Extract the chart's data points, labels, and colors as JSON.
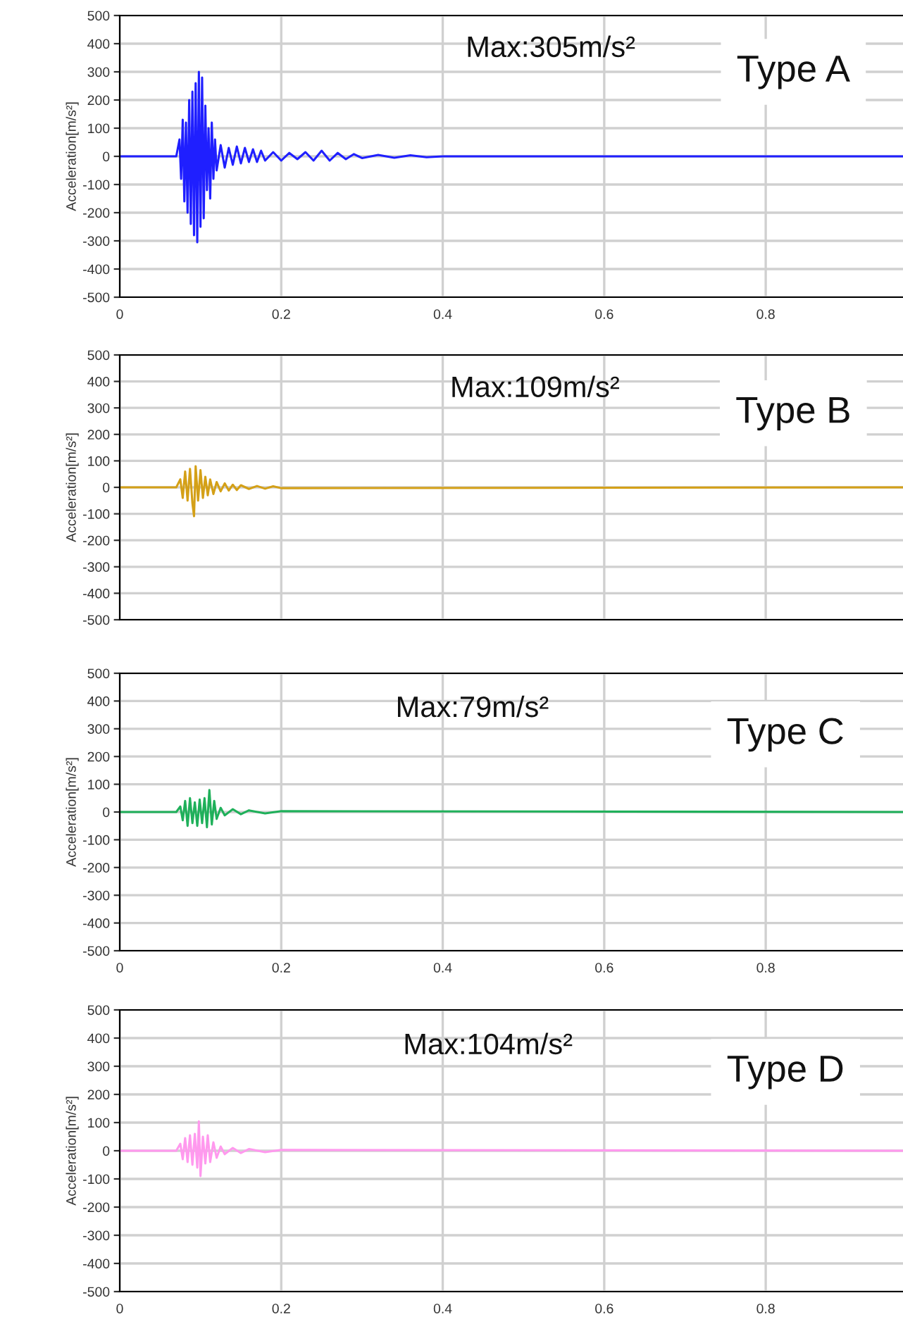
{
  "chart_data": [
    {
      "type": "line",
      "ylabel": "Acceleration[m/s²]",
      "annotations": [
        "Max:305m/s²",
        "Type A"
      ],
      "xlim": [
        0,
        0.97
      ],
      "ylim": [
        -500,
        500
      ],
      "xticks": [
        0,
        0.2,
        0.4,
        0.6,
        0.8
      ],
      "yticks": [
        -500,
        -400,
        -300,
        -200,
        -100,
        0,
        100,
        200,
        300,
        400,
        500
      ],
      "grid": true,
      "legend": false,
      "series": [
        {
          "color": "#1f1fff",
          "x": [
            0,
            0.07,
            0.074,
            0.076,
            0.078,
            0.08,
            0.082,
            0.084,
            0.086,
            0.088,
            0.09,
            0.092,
            0.094,
            0.096,
            0.098,
            0.1,
            0.102,
            0.104,
            0.106,
            0.108,
            0.11,
            0.112,
            0.114,
            0.116,
            0.118,
            0.12,
            0.125,
            0.13,
            0.135,
            0.14,
            0.145,
            0.15,
            0.155,
            0.16,
            0.165,
            0.17,
            0.175,
            0.18,
            0.19,
            0.2,
            0.21,
            0.22,
            0.23,
            0.24,
            0.25,
            0.26,
            0.27,
            0.28,
            0.29,
            0.3,
            0.32,
            0.34,
            0.36,
            0.38,
            0.4,
            0.97
          ],
          "values": [
            0,
            0,
            60,
            -80,
            130,
            -160,
            120,
            -200,
            200,
            -240,
            230,
            -280,
            260,
            -305,
            300,
            -250,
            280,
            -220,
            180,
            -120,
            100,
            -150,
            120,
            -80,
            60,
            -50,
            40,
            -40,
            30,
            -30,
            35,
            -25,
            30,
            -20,
            25,
            -20,
            20,
            -15,
            15,
            -15,
            12,
            -10,
            15,
            -15,
            20,
            -15,
            12,
            -10,
            8,
            -6,
            5,
            -5,
            4,
            -3,
            0,
            0
          ]
        }
      ]
    },
    {
      "type": "line",
      "ylabel": "Acceleration[m/s²]",
      "annotations": [
        "Max:109m/s²",
        "Type B"
      ],
      "xlim": [
        0,
        0.97
      ],
      "ylim": [
        -500,
        500
      ],
      "xticks": [
        0,
        0.2,
        0.4,
        0.6,
        0.8
      ],
      "yticks": [
        -500,
        -400,
        -300,
        -200,
        -100,
        0,
        100,
        200,
        300,
        400,
        500
      ],
      "grid": true,
      "legend": false,
      "tick_labels": "y",
      "series": [
        {
          "color": "#d4a017",
          "x": [
            0,
            0.07,
            0.075,
            0.078,
            0.081,
            0.084,
            0.087,
            0.09,
            0.092,
            0.094,
            0.097,
            0.1,
            0.103,
            0.106,
            0.109,
            0.112,
            0.116,
            0.12,
            0.125,
            0.13,
            0.135,
            0.14,
            0.145,
            0.15,
            0.16,
            0.17,
            0.18,
            0.19,
            0.2,
            0.97
          ],
          "values": [
            0,
            0,
            30,
            -40,
            60,
            -50,
            70,
            -60,
            -109,
            80,
            -50,
            65,
            -40,
            40,
            -30,
            30,
            -25,
            20,
            -15,
            15,
            -12,
            10,
            -10,
            8,
            -6,
            5,
            -5,
            4,
            -3,
            0
          ]
        }
      ]
    },
    {
      "type": "line",
      "ylabel": "Acceleration[m/s²]",
      "annotations": [
        "Max:79m/s²",
        "Type C"
      ],
      "xlim": [
        0,
        0.97
      ],
      "ylim": [
        -500,
        500
      ],
      "xticks": [
        0,
        0.2,
        0.4,
        0.6,
        0.8
      ],
      "yticks": [
        -500,
        -400,
        -300,
        -200,
        -100,
        0,
        100,
        200,
        300,
        400,
        500
      ],
      "grid": true,
      "legend": false,
      "series": [
        {
          "color": "#1fb05a",
          "x": [
            0,
            0.07,
            0.075,
            0.078,
            0.081,
            0.084,
            0.087,
            0.09,
            0.093,
            0.096,
            0.099,
            0.102,
            0.105,
            0.108,
            0.111,
            0.114,
            0.117,
            0.12,
            0.125,
            0.13,
            0.14,
            0.15,
            0.16,
            0.18,
            0.2,
            0.97
          ],
          "values": [
            0,
            0,
            20,
            -30,
            40,
            -50,
            50,
            -40,
            35,
            -50,
            45,
            -40,
            50,
            -55,
            79,
            -45,
            40,
            -25,
            15,
            -12,
            10,
            -8,
            6,
            -5,
            3,
            0
          ]
        }
      ]
    },
    {
      "type": "line",
      "ylabel": "Acceleration[m/s²]",
      "annotations": [
        "Max:104m/s²",
        "Type D"
      ],
      "xlim": [
        0,
        0.97
      ],
      "ylim": [
        -500,
        500
      ],
      "xticks": [
        0,
        0.2,
        0.4,
        0.6,
        0.8
      ],
      "yticks": [
        -500,
        -400,
        -300,
        -200,
        -100,
        0,
        100,
        200,
        300,
        400,
        500
      ],
      "grid": true,
      "legend": false,
      "series": [
        {
          "color": "#ff99ee",
          "x": [
            0,
            0.07,
            0.075,
            0.078,
            0.081,
            0.084,
            0.087,
            0.09,
            0.093,
            0.096,
            0.098,
            0.1,
            0.103,
            0.106,
            0.109,
            0.112,
            0.116,
            0.12,
            0.125,
            0.13,
            0.14,
            0.15,
            0.16,
            0.18,
            0.2,
            0.97
          ],
          "values": [
            0,
            0,
            25,
            -30,
            45,
            -40,
            55,
            -50,
            60,
            -60,
            104,
            -90,
            50,
            -45,
            55,
            -40,
            30,
            -25,
            15,
            -12,
            10,
            -8,
            6,
            -5,
            3,
            0
          ]
        }
      ]
    }
  ]
}
